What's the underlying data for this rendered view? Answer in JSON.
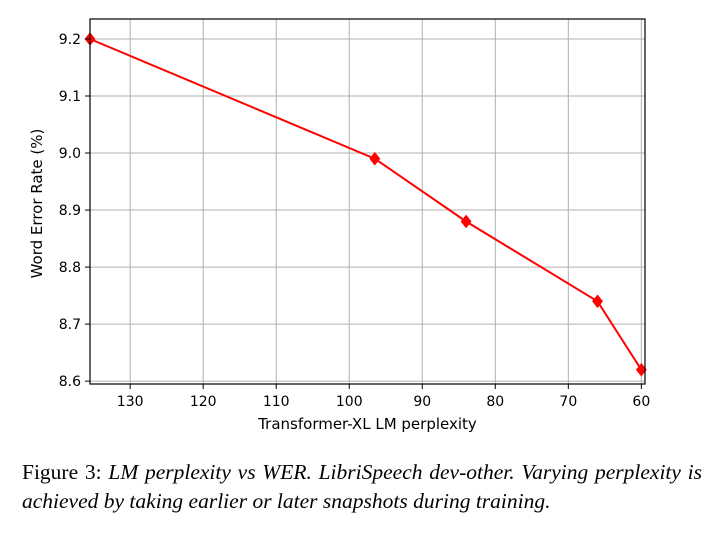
{
  "chart_data": {
    "type": "line",
    "x": [
      135.5,
      96.5,
      84,
      66,
      60
    ],
    "series": [
      {
        "values": [
          9.2,
          8.99,
          8.88,
          8.74,
          8.62
        ],
        "color": "#ff0000",
        "marker": "diamond"
      }
    ],
    "xlabel": "Transformer-XL LM perplexity",
    "ylabel": "Word Error Rate (%)",
    "xlim": [
      135.5,
      59.5
    ],
    "ylim": [
      8.595,
      9.235
    ],
    "x_inverted": true,
    "xticks": [
      130,
      120,
      110,
      100,
      90,
      80,
      70,
      60
    ],
    "yticks": [
      8.6,
      8.7,
      8.8,
      8.9,
      9.0,
      9.1,
      9.2
    ],
    "xtick_labels": [
      "130",
      "120",
      "110",
      "100",
      "90",
      "80",
      "70",
      "60"
    ],
    "ytick_labels": [
      "8.6",
      "8.7",
      "8.8",
      "8.9",
      "9.0",
      "9.1",
      "9.2"
    ],
    "grid": true,
    "colors": {
      "line": "#ff0000",
      "grid": "#b0b0b0",
      "axes": "#000000"
    }
  },
  "caption": {
    "label": "Figure 3:",
    "text": "LM perplexity vs WER. LibriSpeech dev-other. Varying perplexity is achieved by taking earlier or later snapshots during training."
  }
}
